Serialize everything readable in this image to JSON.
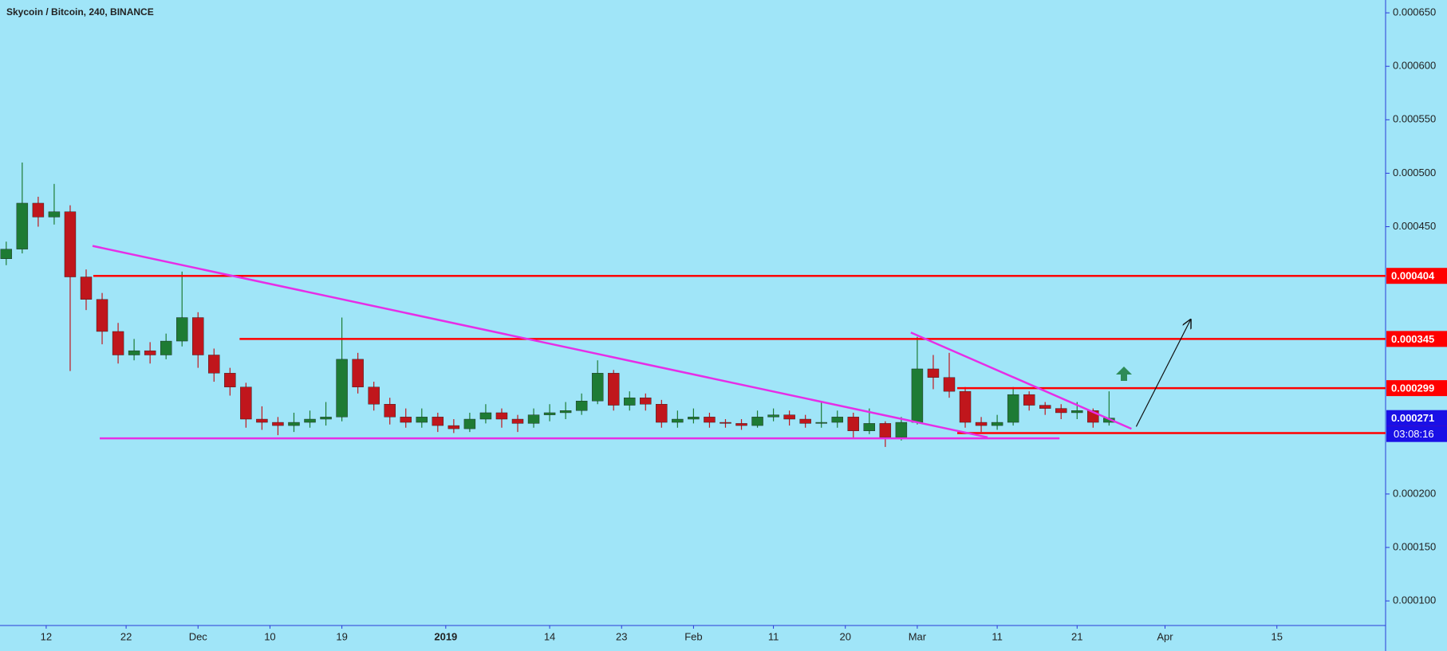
{
  "chart_data": {
    "type": "candlestick",
    "title": "Skycoin / Bitcoin, 240, BINANCE",
    "x": [
      -5,
      -3,
      -1,
      1,
      3,
      5,
      7,
      9,
      11,
      13,
      15,
      17,
      19,
      21,
      23,
      25,
      27,
      29,
      31,
      33,
      35,
      37,
      39,
      41,
      43,
      45,
      47,
      49,
      51,
      53,
      55,
      57,
      59,
      61,
      63,
      65,
      67,
      69,
      71,
      73,
      75,
      77,
      79,
      81,
      83,
      85,
      87,
      89,
      91,
      93,
      95,
      97,
      99,
      101,
      103,
      105,
      107,
      109,
      111,
      113,
      115,
      117,
      119,
      121,
      123,
      125,
      127,
      129,
      131,
      133
    ],
    "open": [
      0.00042,
      0.000429,
      0.000472,
      0.000459,
      0.000464,
      0.000403,
      0.000382,
      0.000352,
      0.00033,
      0.000334,
      0.00033,
      0.000343,
      0.000365,
      0.00033,
      0.000313,
      0.0003,
      0.00027,
      0.000267,
      0.000264,
      0.000267,
      0.00027,
      0.000272,
      0.000326,
      0.0003,
      0.000284,
      0.000272,
      0.000267,
      0.000272,
      0.000264,
      0.000261,
      0.00027,
      0.000276,
      0.00027,
      0.000266,
      0.000274,
      0.000276,
      0.000278,
      0.000287,
      0.000313,
      0.000283,
      0.00029,
      0.000284,
      0.000267,
      0.00027,
      0.000272,
      0.000267,
      0.000266,
      0.000264,
      0.000272,
      0.000274,
      0.00027,
      0.000266,
      0.000267,
      0.000272,
      0.000259,
      0.000266,
      0.000253,
      0.000267,
      0.000317,
      0.000309,
      0.000296,
      0.000267,
      0.000264,
      0.000267,
      0.000293,
      0.000283,
      0.00028,
      0.000276,
      0.000278,
      0.000267
    ],
    "high": [
      0.000436,
      0.00051,
      0.000478,
      0.00049,
      0.00047,
      0.00041,
      0.000388,
      0.00036,
      0.000345,
      0.000342,
      0.00035,
      0.000408,
      0.00037,
      0.000336,
      0.000318,
      0.000304,
      0.000282,
      0.000272,
      0.000276,
      0.000278,
      0.000286,
      0.000365,
      0.000332,
      0.000305,
      0.00029,
      0.00028,
      0.00028,
      0.000276,
      0.00027,
      0.000276,
      0.000284,
      0.00028,
      0.000274,
      0.00028,
      0.000284,
      0.000286,
      0.000294,
      0.000325,
      0.000316,
      0.000296,
      0.000294,
      0.000288,
      0.000278,
      0.00028,
      0.000276,
      0.00027,
      0.00027,
      0.000278,
      0.00028,
      0.000278,
      0.000274,
      0.000286,
      0.000278,
      0.000276,
      0.00028,
      0.000268,
      0.000272,
      0.000347,
      0.00033,
      0.000332,
      0.0003,
      0.000272,
      0.000274,
      0.0003,
      0.000296,
      0.000286,
      0.000284,
      0.000286,
      0.00028,
      0.000296
    ],
    "low": [
      0.000414,
      0.000425,
      0.00045,
      0.000452,
      0.000315,
      0.000372,
      0.00034,
      0.000322,
      0.000325,
      0.000322,
      0.000326,
      0.000338,
      0.000318,
      0.000305,
      0.000292,
      0.000262,
      0.00026,
      0.000255,
      0.000258,
      0.000262,
      0.000264,
      0.000268,
      0.000294,
      0.000278,
      0.000265,
      0.000262,
      0.000262,
      0.000258,
      0.000257,
      0.000258,
      0.000266,
      0.000262,
      0.000258,
      0.000262,
      0.000268,
      0.00027,
      0.000274,
      0.000284,
      0.000278,
      0.000278,
      0.000278,
      0.000262,
      0.000262,
      0.000266,
      0.000262,
      0.000262,
      0.00026,
      0.000262,
      0.000268,
      0.000264,
      0.000262,
      0.000262,
      0.000262,
      0.000252,
      0.000256,
      0.000244,
      0.00025,
      0.000265,
      0.000298,
      0.00029,
      0.000262,
      0.000258,
      0.00026,
      0.000264,
      0.000278,
      0.000274,
      0.00027,
      0.00027,
      0.000262,
      0.000264
    ],
    "close": [
      0.000429,
      0.000472,
      0.000459,
      0.000464,
      0.000403,
      0.000382,
      0.000352,
      0.00033,
      0.000334,
      0.00033,
      0.000343,
      0.000365,
      0.00033,
      0.000313,
      0.0003,
      0.00027,
      0.000267,
      0.000264,
      0.000267,
      0.00027,
      0.000272,
      0.000326,
      0.0003,
      0.000284,
      0.000272,
      0.000267,
      0.000272,
      0.000264,
      0.000261,
      0.00027,
      0.000276,
      0.00027,
      0.000266,
      0.000274,
      0.000276,
      0.000278,
      0.000287,
      0.000313,
      0.000283,
      0.00029,
      0.000284,
      0.000267,
      0.00027,
      0.000272,
      0.000267,
      0.000266,
      0.000264,
      0.000272,
      0.000274,
      0.00027,
      0.000266,
      0.000267,
      0.000272,
      0.000259,
      0.000266,
      0.000253,
      0.000267,
      0.000317,
      0.000309,
      0.000296,
      0.000267,
      0.000264,
      0.000267,
      0.000293,
      0.000283,
      0.00028,
      0.000276,
      0.000278,
      0.000267,
      0.000271
    ],
    "up_color": "#1e7b34",
    "down_color": "#c0161c",
    "xlim": [
      -5.78,
      167.6
    ],
    "ylim": [
      7.7e-05,
      0.000662
    ],
    "xticks": [
      {
        "value": 0,
        "label": "12"
      },
      {
        "value": 10,
        "label": "22"
      },
      {
        "value": 19,
        "label": "Dec"
      },
      {
        "value": 28,
        "label": "10"
      },
      {
        "value": 37,
        "label": "19"
      },
      {
        "value": 50,
        "label": "2019"
      },
      {
        "value": 63,
        "label": "14"
      },
      {
        "value": 72,
        "label": "23"
      },
      {
        "value": 81,
        "label": "Feb"
      },
      {
        "value": 91,
        "label": "11"
      },
      {
        "value": 100,
        "label": "20"
      },
      {
        "value": 109,
        "label": "Mar"
      },
      {
        "value": 119,
        "label": "11"
      },
      {
        "value": 129,
        "label": "21"
      },
      {
        "value": 140,
        "label": "Apr"
      },
      {
        "value": 154,
        "label": "15"
      }
    ],
    "yticks": [
      {
        "value": 0.00065,
        "label": "0.000650"
      },
      {
        "value": 0.0006,
        "label": "0.000600"
      },
      {
        "value": 0.00055,
        "label": "0.000550"
      },
      {
        "value": 0.0005,
        "label": "0.000500"
      },
      {
        "value": 0.00045,
        "label": "0.000450"
      },
      {
        "value": 0.0002,
        "label": "0.000200"
      },
      {
        "value": 0.00015,
        "label": "0.000150"
      },
      {
        "value": 0.0001,
        "label": "0.000100"
      }
    ],
    "levels": [
      {
        "value": 0.000404,
        "from": 5.9,
        "color": "#ff0000"
      },
      {
        "value": 0.000345,
        "from": 24.2,
        "color": "#ff0000"
      },
      {
        "value": 0.000299,
        "from": 114,
        "color": "#ff0000"
      },
      {
        "value": 0.000257,
        "from": 114,
        "color": "#ff0000"
      }
    ],
    "trendlines": [
      {
        "x": [
          5.8,
          117.8
        ],
        "y": [
          0.000432,
          0.000253
        ],
        "color": "#e62ee6"
      },
      {
        "x": [
          6.7,
          126.8
        ],
        "y": [
          0.000252,
          0.000252
        ],
        "color": "#e62ee6"
      },
      {
        "x": [
          108.2,
          135.8
        ],
        "y": [
          0.000351,
          0.000261
        ],
        "color": "#e62ee6"
      },
      {
        "x": [
          136.4,
          143.2
        ],
        "y": [
          0.000263,
          0.000363
        ],
        "color": "#111111",
        "arrow": true
      }
    ],
    "current_color": "#1a10e6",
    "countdown": "03:08:16"
  }
}
